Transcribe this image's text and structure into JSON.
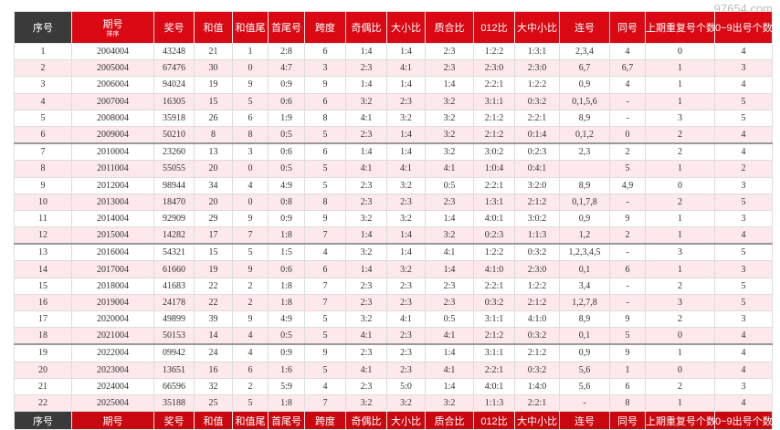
{
  "watermark": "97654.com",
  "table": {
    "columns": [
      "序号",
      "期号",
      "奖号",
      "和值",
      "和值尾",
      "首尾号",
      "跨度",
      "奇偶比",
      "大小比",
      "质合比",
      "012比",
      "大中小比",
      "连号",
      "同号",
      "上期重复号个数",
      "0~9出号个数"
    ],
    "sort_label": "排序",
    "rows": [
      [
        "1",
        "2004004",
        "43248",
        "21",
        "1",
        "2:8",
        "6",
        "1:4",
        "1:4",
        "2:3",
        "1:2:2",
        "1:3:1",
        "2,3,4",
        "4",
        "0",
        "4"
      ],
      [
        "2",
        "2005004",
        "67476",
        "30",
        "0",
        "4:7",
        "3",
        "2:3",
        "4:1",
        "2:3",
        "2:3:0",
        "2:3:0",
        "6,7",
        "6,7",
        "1",
        "3"
      ],
      [
        "3",
        "2006004",
        "94024",
        "19",
        "9",
        "0:9",
        "9",
        "1:4",
        "1:4",
        "1:4",
        "2:2:1",
        "1:2:2",
        "0,9",
        "4",
        "1",
        "4"
      ],
      [
        "4",
        "2007004",
        "16305",
        "15",
        "5",
        "0:6",
        "6",
        "3:2",
        "2:3",
        "3:2",
        "3:1:1",
        "0:3:2",
        "0,1,5,6",
        "-",
        "1",
        "5"
      ],
      [
        "5",
        "2008004",
        "35918",
        "26",
        "6",
        "1:9",
        "8",
        "4:1",
        "3:2",
        "3:2",
        "2:1:2",
        "2:2:1",
        "8,9",
        "-",
        "3",
        "5"
      ],
      [
        "6",
        "2009004",
        "50210",
        "8",
        "8",
        "0:5",
        "5",
        "2:3",
        "1:4",
        "3:2",
        "2:1:2",
        "0:1:4",
        "0,1,2",
        "0",
        "2",
        "4"
      ],
      [
        "7",
        "2010004",
        "23260",
        "13",
        "3",
        "0:6",
        "6",
        "1:4",
        "1:4",
        "3:2",
        "3:0:2",
        "0:2:3",
        "2,3",
        "2",
        "2",
        "4"
      ],
      [
        "8",
        "2011004",
        "55055",
        "20",
        "0",
        "0:5",
        "5",
        "4:1",
        "4:1",
        "4:1",
        "1:0:4",
        "0:4:1",
        null,
        "5",
        "1",
        "2"
      ],
      [
        "9",
        "2012004",
        "98944",
        "34",
        "4",
        "4:9",
        "5",
        "2:3",
        "3:2",
        "0:5",
        "2:2:1",
        "3:2:0",
        "8,9",
        "4,9",
        "0",
        "3"
      ],
      [
        "10",
        "2013004",
        "18470",
        "20",
        "0",
        "0:8",
        "8",
        "2:3",
        "2:3",
        "2:3",
        "1:3:1",
        "2:1:2",
        "0,1,7,8",
        "-",
        "2",
        "5"
      ],
      [
        "11",
        "2014004",
        "92909",
        "29",
        "9",
        "0:9",
        "9",
        "3:2",
        "3:2",
        "1:4",
        "4:0:1",
        "3:0:2",
        "0,9",
        "9",
        "1",
        "3"
      ],
      [
        "12",
        "2015004",
        "14282",
        "17",
        "7",
        "1:8",
        "7",
        "1:4",
        "1:4",
        "3:2",
        "0:2:3",
        "1:1:3",
        "1,2",
        "2",
        "1",
        "4"
      ],
      [
        "13",
        "2016004",
        "54321",
        "15",
        "5",
        "1:5",
        "4",
        "3:2",
        "1:4",
        "4:1",
        "1:2:2",
        "0:3:2",
        "1,2,3,4,5",
        "-",
        "3",
        "5"
      ],
      [
        "14",
        "2017004",
        "61660",
        "19",
        "9",
        "0:6",
        "6",
        "1:4",
        "3:2",
        "1:4",
        "4:1:0",
        "2:3:0",
        "0,1",
        "6",
        "1",
        "3"
      ],
      [
        "15",
        "2018004",
        "41683",
        "22",
        "2",
        "1:8",
        "7",
        "2:3",
        "2:3",
        "2:3",
        "2:2:1",
        "1:2:2",
        "3,4",
        "-",
        "2",
        "5"
      ],
      [
        "16",
        "2019004",
        "24178",
        "22",
        "2",
        "1:8",
        "7",
        "2:3",
        "2:3",
        "2:3",
        "0:3:2",
        "2:1:2",
        "1,2,7,8",
        "-",
        "3",
        "5"
      ],
      [
        "17",
        "2020004",
        "49899",
        "39",
        "9",
        "4:9",
        "5",
        "3:2",
        "4:1",
        "0:5",
        "3:1:1",
        "4:1:0",
        "8,9",
        "9",
        "2",
        "3"
      ],
      [
        "18",
        "2021004",
        "50153",
        "14",
        "4",
        "0:5",
        "5",
        "4:1",
        "2:3",
        "4:1",
        "2:1:2",
        "0:3:2",
        "0,1",
        "5",
        "0",
        "4"
      ],
      [
        "19",
        "2022004",
        "09942",
        "24",
        "4",
        "0:9",
        "9",
        "2:3",
        "2:3",
        "1:4",
        "3:1:1",
        "2:1:2",
        "0,9",
        "9",
        "1",
        "4"
      ],
      [
        "20",
        "2023004",
        "13651",
        "16",
        "6",
        "1:6",
        "5",
        "4:1",
        "2:3",
        "4:1",
        "2:2:1",
        "0:3:2",
        "5,6",
        "1",
        "0",
        "4"
      ],
      [
        "21",
        "2024004",
        "66596",
        "32",
        "2",
        "5:9",
        "4",
        "2:3",
        "5:0",
        "1:4",
        "4:0:1",
        "1:4:0",
        "5,6",
        "6",
        "2",
        "3"
      ],
      [
        "22",
        "2025004",
        "35188",
        "25",
        "5",
        "1:8",
        "7",
        "3:2",
        "3:2",
        "3:2",
        "1:1:3",
        "2:2:1",
        "-",
        "8",
        "1",
        "4"
      ]
    ]
  }
}
